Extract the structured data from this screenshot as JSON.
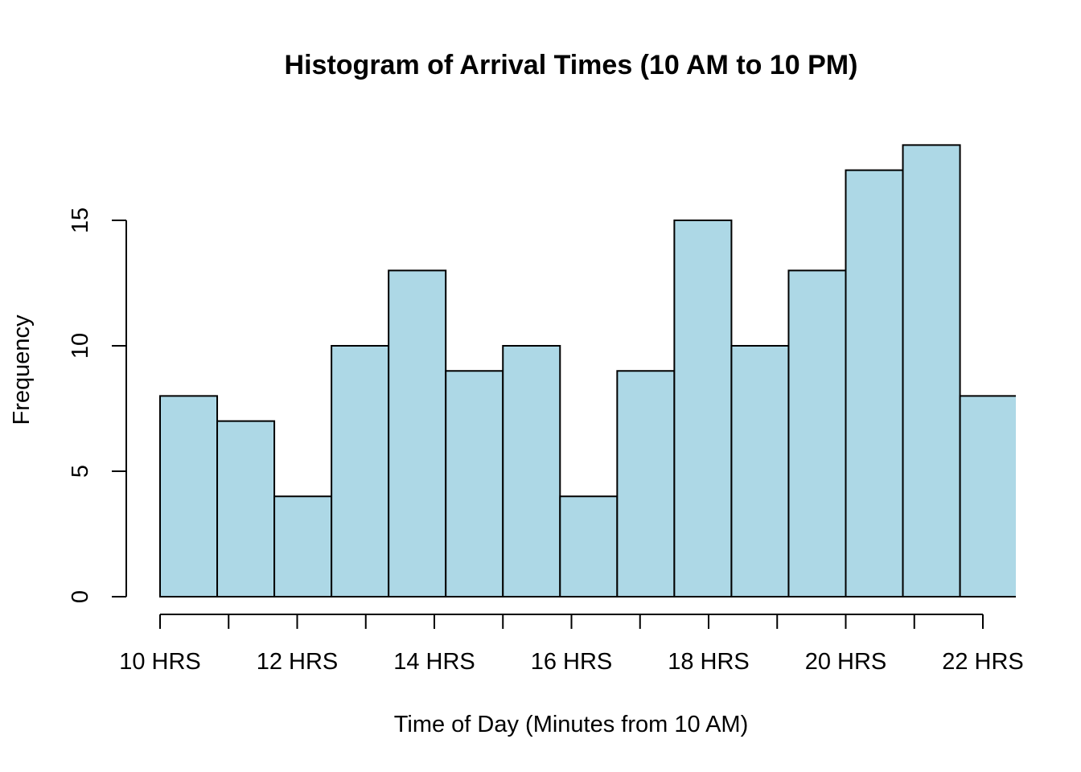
{
  "chart_data": {
    "type": "bar",
    "title": "Histogram of Arrival Times (10 AM to 10 PM)",
    "xlabel": "Time of Day (Minutes from 10 AM)",
    "ylabel": "Frequency",
    "x_unit": "hours",
    "bin_width": 0.8333,
    "bin_starts": [
      10.0,
      10.8333,
      11.6667,
      12.5,
      13.3333,
      14.1667,
      15.0,
      15.8333,
      16.6667,
      17.5,
      18.3333,
      19.1667,
      20.0,
      20.8333,
      21.6667
    ],
    "values": [
      8,
      7,
      4,
      10,
      13,
      9,
      10,
      4,
      9,
      15,
      10,
      13,
      17,
      18,
      8
    ],
    "xlim": [
      10,
      22.5
    ],
    "ylim": [
      0,
      18
    ],
    "x_major_ticks": [
      10,
      12,
      14,
      16,
      18,
      20,
      22
    ],
    "x_minor_ticks": [
      11,
      13,
      15,
      17,
      19,
      21
    ],
    "x_tick_labels": [
      "10 HRS",
      "12 HRS",
      "14 HRS",
      "16 HRS",
      "18 HRS",
      "20 HRS",
      "22 HRS"
    ],
    "y_ticks": [
      0,
      5,
      10,
      15
    ],
    "y_tick_labels": [
      "0",
      "5",
      "10",
      "15"
    ],
    "bar_color": "#add8e6",
    "edge_color": "#000000",
    "grid": false
  }
}
